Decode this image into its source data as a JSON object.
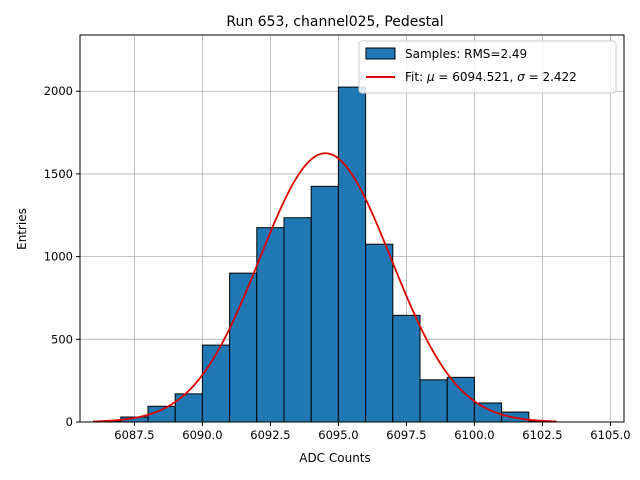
{
  "chart_data": {
    "type": "bar",
    "title": "Run 653, channel025, Pedestal",
    "xlabel": "ADC Counts",
    "ylabel": "Entries",
    "xlim": [
      6085.5,
      6105.5
    ],
    "ylim": [
      0,
      2340
    ],
    "grid": true,
    "legend_position": "top-right",
    "x_ticks": [
      6087.5,
      6090.0,
      6092.5,
      6095.0,
      6097.5,
      6100.0,
      6102.5,
      6105.0
    ],
    "x_tick_labels": [
      "6087.5",
      "6090.0",
      "6092.5",
      "6095.0",
      "6097.5",
      "6100.0",
      "6102.5",
      "6105.0"
    ],
    "y_ticks": [
      0,
      500,
      1000,
      1500,
      2000
    ],
    "y_tick_labels": [
      "0",
      "500",
      "1000",
      "1500",
      "2000"
    ],
    "histogram": {
      "name": "Samples: RMS=2.49",
      "color": "#1f77b4",
      "edge_color": "#000000",
      "bin_edges": [
        6086,
        6087,
        6088,
        6089,
        6090,
        6091,
        6092,
        6093,
        6094,
        6095,
        6096,
        6097,
        6098,
        6099,
        6100,
        6101,
        6102,
        6103,
        6104,
        6105
      ],
      "counts": [
        5,
        30,
        95,
        170,
        465,
        900,
        1175,
        1235,
        1425,
        2025,
        1075,
        645,
        255,
        270,
        115,
        60,
        5,
        0,
        0
      ]
    },
    "fit": {
      "name": "Fit: μ = 6094.521, σ = 2.422",
      "label_prefix": "Fit: ",
      "mu_symbol": "μ",
      "mu_text": " = 6094.521, ",
      "sigma_symbol": "σ",
      "sigma_text": " = 2.422",
      "color": "#dd0000",
      "mu": 6094.521,
      "sigma": 2.422,
      "amplitude": 1625,
      "x_range": [
        6086,
        6103
      ]
    }
  }
}
